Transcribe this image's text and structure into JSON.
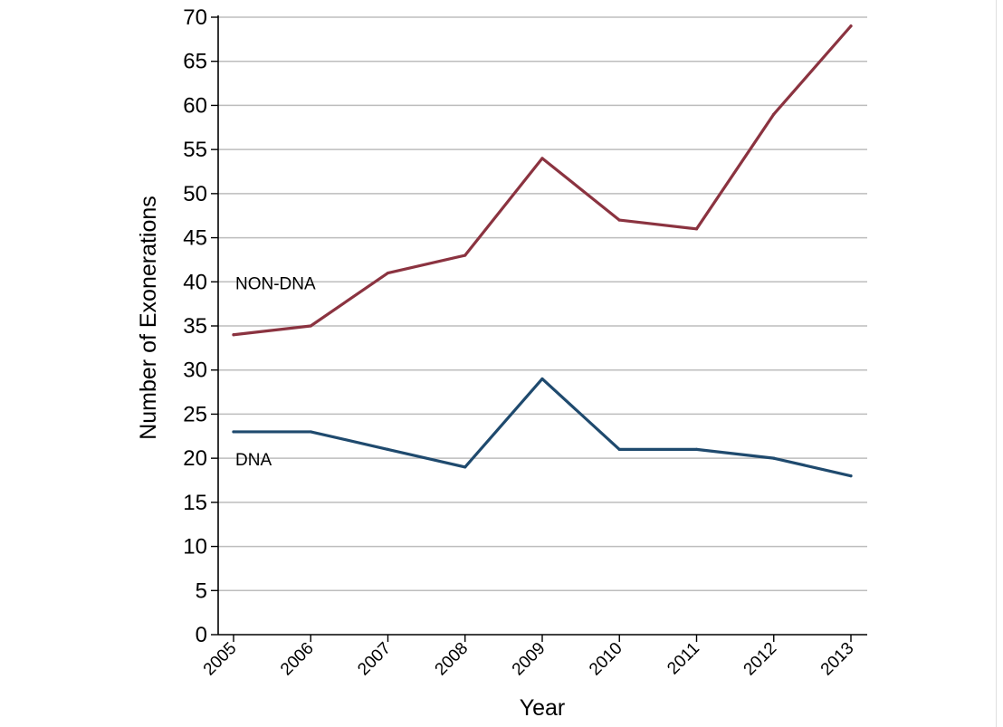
{
  "chart_data": {
    "type": "line",
    "xlabel": "Year",
    "ylabel": "Number of Exonerations",
    "x": [
      "2005",
      "2006",
      "2007",
      "2008",
      "2009",
      "2010",
      "2011",
      "2012",
      "2013"
    ],
    "ylim": [
      0,
      70
    ],
    "yticks": [
      0,
      5,
      10,
      15,
      20,
      25,
      30,
      35,
      40,
      45,
      50,
      55,
      60,
      65,
      70
    ],
    "grid": true,
    "series": [
      {
        "name": "NON-DNA",
        "color": "#8b3340",
        "values": [
          34,
          35,
          41,
          43,
          54,
          47,
          46,
          59,
          69
        ]
      },
      {
        "name": "DNA",
        "color": "#1f4a6e",
        "values": [
          23,
          23,
          21,
          19,
          29,
          21,
          21,
          20,
          18
        ]
      }
    ]
  }
}
